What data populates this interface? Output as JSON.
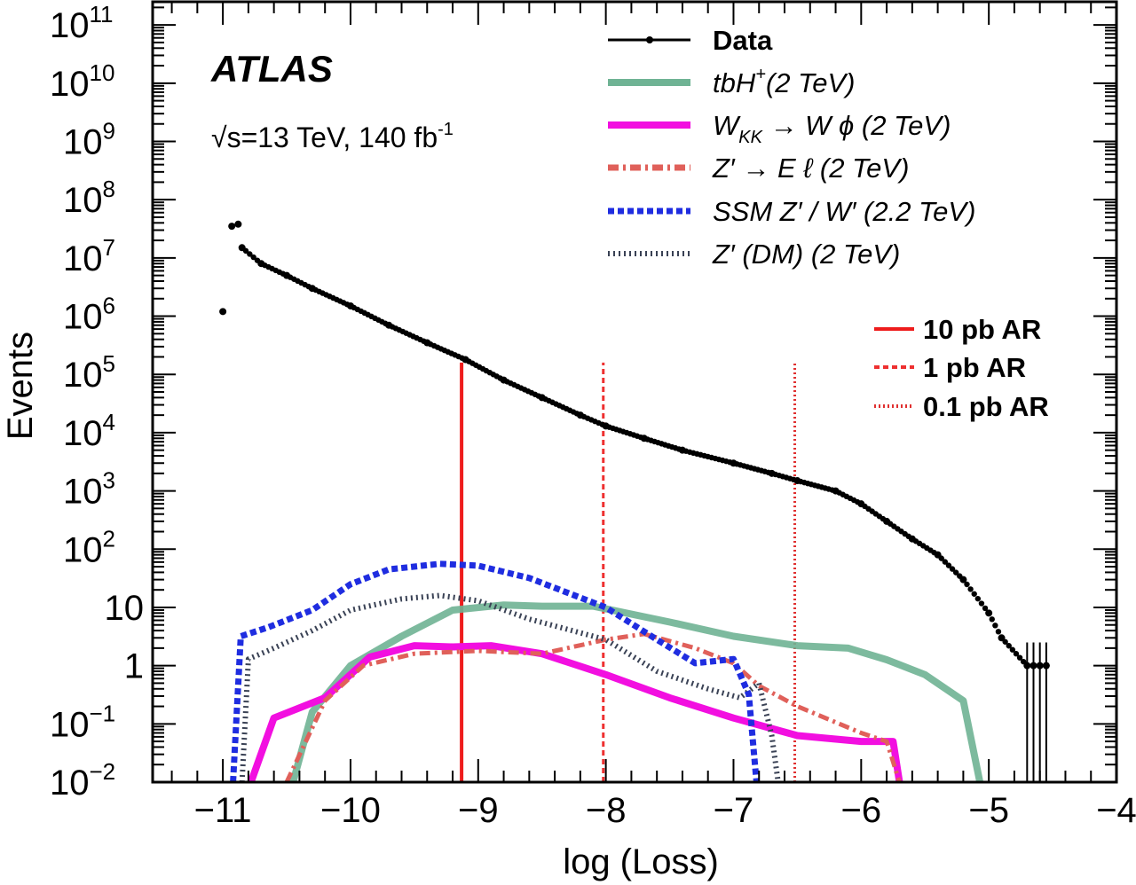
{
  "chart_data": {
    "type": "line",
    "title": "",
    "xlabel": "log (Loss)",
    "ylabel": "Events",
    "xlim": [
      -11.55,
      -4
    ],
    "ylim": [
      0.01,
      250000000000.0
    ],
    "yscale": "log",
    "grid": false,
    "x_ticks": [
      "−11",
      "−10",
      "−9",
      "−8",
      "−7",
      "−6",
      "−5",
      "−4"
    ],
    "x_tick_values": [
      -11,
      -10,
      -9,
      -8,
      -7,
      -6,
      -5,
      -4
    ],
    "y_ticks": [
      {
        "base": "10",
        "exp": "−2",
        "value": 0.01
      },
      {
        "base": "10",
        "exp": "−1",
        "value": 0.1
      },
      {
        "base": "1",
        "exp": "",
        "value": 1
      },
      {
        "base": "10",
        "exp": "",
        "value": 10
      },
      {
        "base": "10",
        "exp": "2",
        "value": 100
      },
      {
        "base": "10",
        "exp": "3",
        "value": 1000
      },
      {
        "base": "10",
        "exp": "4",
        "value": 10000
      },
      {
        "base": "10",
        "exp": "5",
        "value": 100000
      },
      {
        "base": "10",
        "exp": "6",
        "value": 1000000
      },
      {
        "base": "10",
        "exp": "7",
        "value": 10000000
      },
      {
        "base": "10",
        "exp": "8",
        "value": 100000000
      },
      {
        "base": "10",
        "exp": "9",
        "value": 1000000000
      },
      {
        "base": "10",
        "exp": "10",
        "value": 10000000000
      },
      {
        "base": "10",
        "exp": "11",
        "value": 100000000000
      }
    ],
    "annotations": {
      "experiment": "ATLAS",
      "energy": "√s=13 TeV,  140 fb",
      "energy_exp": "-1"
    },
    "legend_placement": "top-right",
    "series": [
      {
        "name": "Data",
        "style": "points",
        "color": "#000000",
        "x": [
          -11.0,
          -10.93,
          -10.88,
          -10.85,
          -10.7,
          -10.5,
          -10.3,
          -10.0,
          -9.7,
          -9.4,
          -9.1,
          -8.8,
          -8.5,
          -8.2,
          -8.0,
          -7.7,
          -7.4,
          -7.0,
          -6.7,
          -6.5,
          -6.2,
          -6.0,
          -5.8,
          -5.6,
          -5.4,
          -5.2,
          -5.0,
          -4.9,
          -4.7,
          -4.65,
          -4.6,
          -4.55
        ],
        "y": [
          1200000.0,
          35000000.0,
          38000000.0,
          15000000.0,
          8000000.0,
          5000000.0,
          3000000.0,
          1500000.0,
          700000.0,
          350000.0,
          180000.0,
          80000.0,
          40000.0,
          20000.0,
          13000.0,
          8000.0,
          5000.0,
          3000.0,
          2000.0,
          1500.0,
          1000.0,
          600,
          300,
          150,
          80,
          30,
          8,
          3,
          1,
          1,
          1,
          1
        ]
      },
      {
        "name_main": "tbH",
        "name_sup": "+",
        "name_rest": "(2 TeV)",
        "style": "solid-thick",
        "color": "#6fb394",
        "x": [
          -10.45,
          -10.3,
          -10.0,
          -9.6,
          -9.2,
          -8.8,
          -8.5,
          -8.1,
          -7.5,
          -7.0,
          -6.5,
          -6.1,
          -5.8,
          -5.5,
          -5.2,
          -5.07
        ],
        "y": [
          0.01,
          0.16,
          1,
          3.2,
          9,
          11,
          10.5,
          10.5,
          5.6,
          3.2,
          2.2,
          2,
          1.26,
          0.7,
          0.25,
          0.01
        ]
      },
      {
        "name_main": "W",
        "name_sub": "KK",
        "name_rest": " →  W ϕ (2 TeV)",
        "style": "solid-thick",
        "color": "#f20fe0",
        "x": [
          -10.78,
          -10.6,
          -10.2,
          -9.85,
          -9.5,
          -9.2,
          -8.9,
          -8.5,
          -8.0,
          -7.5,
          -7.0,
          -6.5,
          -6.0,
          -5.75,
          -5.7
        ],
        "y": [
          0.01,
          0.126,
          0.28,
          1.4,
          2.2,
          2.1,
          2.2,
          1.6,
          0.7,
          0.28,
          0.126,
          0.063,
          0.05,
          0.05,
          0.01
        ]
      },
      {
        "name": "Z′ → E ℓ (2 TeV)",
        "style": "dash-dot",
        "color": "#e0605a",
        "x": [
          -10.5,
          -10.2,
          -9.9,
          -9.5,
          -9.0,
          -8.5,
          -8.0,
          -7.7,
          -7.3,
          -7.0,
          -6.8,
          -6.5,
          -6.0,
          -5.8,
          -5.7
        ],
        "y": [
          0.01,
          0.25,
          1,
          1.6,
          1.8,
          1.6,
          2.8,
          3.5,
          2,
          1.1,
          0.45,
          0.2,
          0.07,
          0.05,
          0.01
        ]
      },
      {
        "name": "SSM Z′ / W′ (2.2 TeV)",
        "style": "dashed",
        "color": "#1f2de0",
        "x": [
          -10.92,
          -10.86,
          -10.65,
          -10.3,
          -10.0,
          -9.7,
          -9.3,
          -9.0,
          -8.6,
          -8.0,
          -7.6,
          -7.3,
          -7.0,
          -6.88,
          -6.82
        ],
        "y": [
          0.01,
          3.2,
          4.5,
          9,
          25,
          45,
          56,
          52,
          32,
          10,
          2.8,
          1.1,
          1.3,
          0.32,
          0.01
        ]
      },
      {
        "name": "Z′ (DM) (2 TeV)",
        "style": "dotted",
        "color": "#3a4255",
        "x": [
          -10.85,
          -10.8,
          -10.6,
          -10.3,
          -10.0,
          -9.6,
          -9.3,
          -9.0,
          -8.6,
          -8.0,
          -7.6,
          -7.2,
          -6.95,
          -6.8,
          -6.7,
          -6.65
        ],
        "y": [
          0.01,
          1.3,
          2,
          4,
          9,
          14,
          16,
          13,
          6.3,
          2.8,
          0.8,
          0.4,
          0.28,
          0.5,
          0.063,
          0.01
        ]
      }
    ],
    "vertical_lines": [
      {
        "name": "10 pb AR",
        "x": -9.13,
        "top": 160000.0,
        "style": "solid",
        "color": "#ee1c1c"
      },
      {
        "name": "1 pb AR",
        "x": -8.02,
        "top": 160000.0,
        "style": "dashed",
        "color": "#ee3030"
      },
      {
        "name": "0.1 pb AR",
        "x": -6.52,
        "top": 160000.0,
        "style": "dotted",
        "color": "#e03030"
      }
    ]
  }
}
